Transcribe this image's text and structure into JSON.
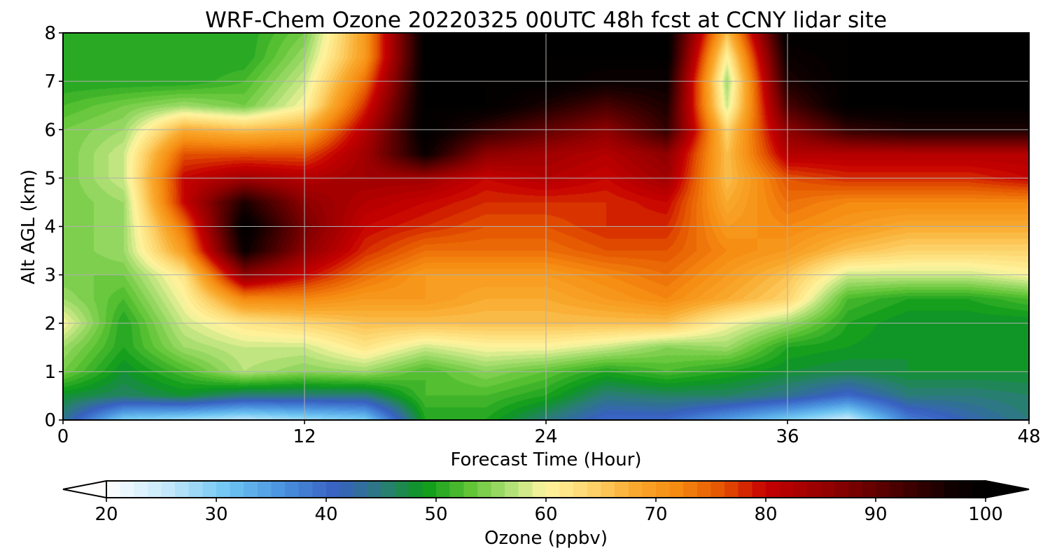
{
  "chart_data": {
    "type": "heatmap",
    "title": "WRF-Chem Ozone  20220325 00UTC 48h fcst at CCNY lidar site",
    "xlabel": "Forecast Time (Hour)",
    "ylabel": "Alt AGL (km)",
    "xlim": [
      0,
      48
    ],
    "ylim": [
      0,
      8
    ],
    "xticks": [
      0,
      12,
      24,
      36,
      48
    ],
    "yticks": [
      0,
      1,
      2,
      3,
      4,
      5,
      6,
      7,
      8
    ],
    "grid": true,
    "x": [
      0,
      3,
      6,
      9,
      12,
      15,
      18,
      21,
      24,
      27,
      30,
      33,
      36,
      39,
      42,
      45,
      48
    ],
    "y": [
      0,
      0.5,
      1,
      1.5,
      2,
      2.5,
      3,
      3.5,
      4,
      4.5,
      5,
      5.5,
      6,
      6.5,
      7,
      7.5,
      8
    ],
    "z": [
      [
        44,
        30,
        28,
        26,
        28,
        30,
        50,
        50,
        45,
        40,
        40,
        35,
        30,
        25,
        38,
        42,
        45
      ],
      [
        48,
        46,
        48,
        45,
        45,
        45,
        52,
        52,
        50,
        45,
        46,
        46,
        44,
        40,
        45,
        45,
        46
      ],
      [
        54,
        48,
        52,
        57,
        55,
        56,
        52,
        55,
        53,
        50,
        52,
        50,
        48,
        47,
        48,
        48,
        48
      ],
      [
        56,
        50,
        56,
        58,
        58,
        62,
        58,
        60,
        60,
        58,
        55,
        56,
        50,
        49,
        48,
        48,
        48
      ],
      [
        60,
        50,
        58,
        62,
        64,
        66,
        66,
        66,
        66,
        66,
        66,
        60,
        56,
        50,
        48,
        48,
        48
      ],
      [
        56,
        52,
        60,
        72,
        72,
        70,
        70,
        68,
        68,
        70,
        72,
        68,
        64,
        52,
        50,
        50,
        52
      ],
      [
        54,
        54,
        62,
        86,
        80,
        74,
        70,
        70,
        70,
        72,
        74,
        70,
        66,
        58,
        58,
        58,
        60
      ],
      [
        54,
        56,
        70,
        98,
        86,
        78,
        74,
        74,
        74,
        76,
        76,
        72,
        70,
        66,
        64,
        64,
        64
      ],
      [
        54,
        56,
        74,
        100,
        88,
        80,
        78,
        76,
        76,
        78,
        78,
        70,
        72,
        70,
        68,
        68,
        68
      ],
      [
        54,
        56,
        80,
        96,
        86,
        82,
        80,
        78,
        78,
        78,
        80,
        68,
        74,
        72,
        72,
        72,
        72
      ],
      [
        54,
        58,
        80,
        84,
        82,
        84,
        84,
        80,
        82,
        80,
        84,
        66,
        76,
        78,
        78,
        78,
        80
      ],
      [
        54,
        58,
        76,
        76,
        76,
        84,
        98,
        86,
        84,
        82,
        86,
        66,
        82,
        82,
        82,
        82,
        82
      ],
      [
        54,
        56,
        68,
        66,
        68,
        82,
        100,
        94,
        90,
        86,
        94,
        64,
        86,
        94,
        96,
        96,
        96
      ],
      [
        52,
        54,
        56,
        54,
        60,
        78,
        100,
        100,
        96,
        92,
        96,
        58,
        92,
        100,
        100,
        100,
        100
      ],
      [
        50,
        50,
        50,
        52,
        58,
        74,
        100,
        100,
        100,
        98,
        98,
        56,
        96,
        100,
        100,
        100,
        100
      ],
      [
        50,
        50,
        50,
        50,
        56,
        70,
        100,
        100,
        100,
        100,
        100,
        60,
        98,
        100,
        100,
        100,
        100
      ],
      [
        50,
        50,
        50,
        50,
        54,
        70,
        100,
        100,
        100,
        100,
        100,
        66,
        100,
        100,
        100,
        100,
        100
      ]
    ],
    "colorbar": {
      "label": "Ozone  (ppbv)",
      "min": 20,
      "max": 100,
      "ticks": [
        20,
        30,
        40,
        50,
        60,
        70,
        80,
        90,
        100
      ],
      "extend": "both",
      "stops": [
        {
          "v": 20,
          "c": "#ffffff"
        },
        {
          "v": 26,
          "c": "#bfe6fb"
        },
        {
          "v": 31,
          "c": "#6ec6f2"
        },
        {
          "v": 36,
          "c": "#4a92de"
        },
        {
          "v": 41,
          "c": "#3860c2"
        },
        {
          "v": 45,
          "c": "#2c7a7c"
        },
        {
          "v": 49,
          "c": "#0b9a1a"
        },
        {
          "v": 53,
          "c": "#5ec434"
        },
        {
          "v": 57,
          "c": "#b5e27a"
        },
        {
          "v": 60,
          "c": "#fff5a0"
        },
        {
          "v": 64,
          "c": "#fdd56e"
        },
        {
          "v": 68,
          "c": "#f9aa2e"
        },
        {
          "v": 72,
          "c": "#f58a10"
        },
        {
          "v": 76,
          "c": "#e45400"
        },
        {
          "v": 80,
          "c": "#c60000"
        },
        {
          "v": 86,
          "c": "#8e0000"
        },
        {
          "v": 92,
          "c": "#4a0000"
        },
        {
          "v": 97,
          "c": "#100000"
        },
        {
          "v": 100,
          "c": "#000000"
        }
      ]
    }
  }
}
